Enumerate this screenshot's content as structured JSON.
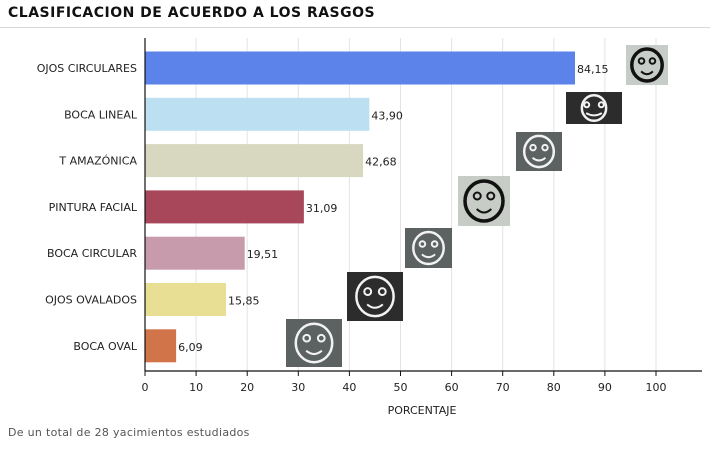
{
  "page": {
    "title": "CLASIFICACION DE ACUERDO A LOS RASGOS",
    "footnote": "De un total de 28 yacimientos estudiados"
  },
  "chart_data": {
    "type": "bar",
    "orientation": "horizontal",
    "categories": [
      "OJOS CIRCULARES",
      "BOCA LINEAL",
      "T AMAZÓNICA",
      "PINTURA FACIAL",
      "BOCA CIRCULAR",
      "OJOS OVALADOS",
      "BOCA OVAL"
    ],
    "values": [
      84.15,
      43.9,
      42.68,
      31.09,
      19.51,
      15.85,
      6.09
    ],
    "value_labels": [
      "84,15",
      "43,90",
      "42,68",
      "31,09",
      "19,51",
      "15,85",
      "6,09"
    ],
    "colors": [
      "#5b83ea",
      "#bcdff2",
      "#d8d8c0",
      "#a8465a",
      "#c79aac",
      "#e8df94",
      "#d2744a"
    ],
    "xlabel": "PORCENTAJE",
    "ylabel": "",
    "xlim": [
      0,
      108
    ],
    "xticks": [
      0,
      10,
      20,
      30,
      40,
      50,
      60,
      70,
      80,
      90,
      100
    ],
    "grid": true,
    "legend": "none",
    "thumbnails": [
      "face-thumbnail",
      "smile-thumbnail",
      "engraved-face-thumbnail",
      "mask-face-thumbnail",
      "round-mouth-face-thumbnail",
      "oval-eyes-face-thumbnail",
      "stone-face-thumbnail"
    ]
  }
}
